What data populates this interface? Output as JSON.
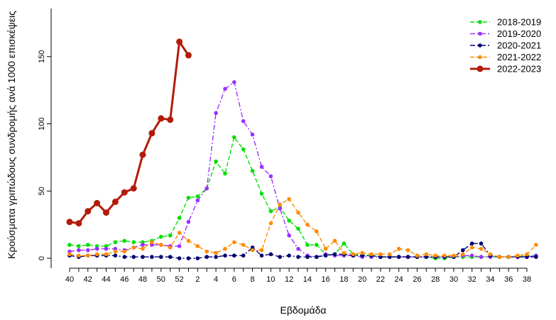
{
  "chart_data": {
    "type": "line",
    "title": "",
    "xlabel": "Εβδομάδα",
    "ylabel": "Κρούσματα γριπώδους συνδρομής ανά 1000 επισκέψεις",
    "ylim": [
      0,
      185
    ],
    "yticks": [
      0,
      50,
      100,
      150
    ],
    "weeks": [
      40,
      41,
      42,
      43,
      44,
      45,
      46,
      47,
      48,
      49,
      50,
      51,
      52,
      1,
      2,
      3,
      4,
      5,
      6,
      7,
      8,
      9,
      10,
      11,
      12,
      13,
      14,
      15,
      16,
      17,
      18,
      19,
      20,
      21,
      22,
      23,
      24,
      25,
      26,
      27,
      28,
      29,
      30,
      31,
      32,
      33,
      34,
      35,
      36,
      37,
      38,
      39
    ],
    "xtick_labels": [
      "40",
      "42",
      "44",
      "46",
      "48",
      "50",
      "52",
      "2",
      "4",
      "6",
      "8",
      "10",
      "12",
      "14",
      "16",
      "18",
      "20",
      "22",
      "24",
      "26",
      "28",
      "30",
      "32",
      "34",
      "36",
      "38"
    ],
    "legend_position": "top-right",
    "grid": false,
    "series": [
      {
        "name": "2018-2019",
        "color": "#00e000",
        "style": "dashed",
        "values": [
          10,
          9,
          10,
          9,
          9,
          12,
          13,
          12,
          12,
          13,
          16,
          17,
          30,
          45,
          46,
          52,
          72,
          63,
          90,
          81,
          65,
          48,
          35,
          38,
          28,
          22,
          10,
          10,
          3,
          3,
          11,
          3,
          2,
          2,
          1,
          1,
          1,
          1,
          1,
          1,
          0,
          0,
          1,
          1,
          1,
          1,
          1,
          1,
          1,
          1,
          2,
          2
        ]
      },
      {
        "name": "2019-2020",
        "color": "#9b30ff",
        "style": "dashdot",
        "values": [
          5,
          6,
          6,
          7,
          7,
          7,
          6,
          8,
          10,
          10,
          10,
          9,
          9,
          27,
          43,
          52,
          108,
          126,
          131,
          102,
          92,
          68,
          61,
          37,
          17,
          7,
          2,
          1,
          3,
          2,
          2,
          2,
          1,
          1,
          1,
          1,
          1,
          1,
          1,
          1,
          1,
          1,
          1,
          2,
          2,
          1,
          1,
          1,
          1,
          1,
          1,
          2
        ]
      },
      {
        "name": "2020-2021",
        "color": "#000070",
        "style": "dashdot",
        "values": [
          2,
          1,
          2,
          2,
          2,
          2,
          1,
          1,
          1,
          1,
          1,
          1,
          0,
          0,
          0,
          1,
          1,
          2,
          2,
          2,
          8,
          2,
          3,
          1,
          2,
          1,
          1,
          1,
          2,
          3,
          3,
          2,
          2,
          2,
          1,
          1,
          1,
          1,
          1,
          1,
          1,
          1,
          1,
          6,
          11,
          11,
          2,
          1,
          1,
          1,
          1,
          1
        ]
      },
      {
        "name": "2021-2022",
        "color": "#ff8c00",
        "style": "dashed",
        "values": [
          3,
          2,
          2,
          3,
          3,
          5,
          5,
          8,
          7,
          12,
          10,
          8,
          19,
          13,
          9,
          5,
          4,
          7,
          12,
          10,
          6,
          6,
          26,
          40,
          44,
          34,
          25,
          20,
          7,
          13,
          4,
          3,
          4,
          3,
          3,
          3,
          7,
          6,
          2,
          3,
          2,
          2,
          2,
          3,
          8,
          7,
          3,
          1,
          1,
          2,
          3,
          10
        ]
      },
      {
        "name": "2022-2023",
        "color": "#b31b0a",
        "style": "solid",
        "values": [
          27,
          26,
          35,
          41,
          34,
          42,
          49,
          52,
          77,
          93,
          104,
          103,
          161,
          151,
          null,
          null,
          null,
          null,
          null,
          null,
          null,
          null,
          null,
          null,
          null,
          null,
          null,
          null,
          null,
          null,
          null,
          null,
          null,
          null,
          null,
          null,
          null,
          null,
          null,
          null,
          null,
          null,
          null,
          null,
          null,
          null,
          null,
          null,
          null,
          null,
          null,
          null
        ]
      }
    ]
  }
}
